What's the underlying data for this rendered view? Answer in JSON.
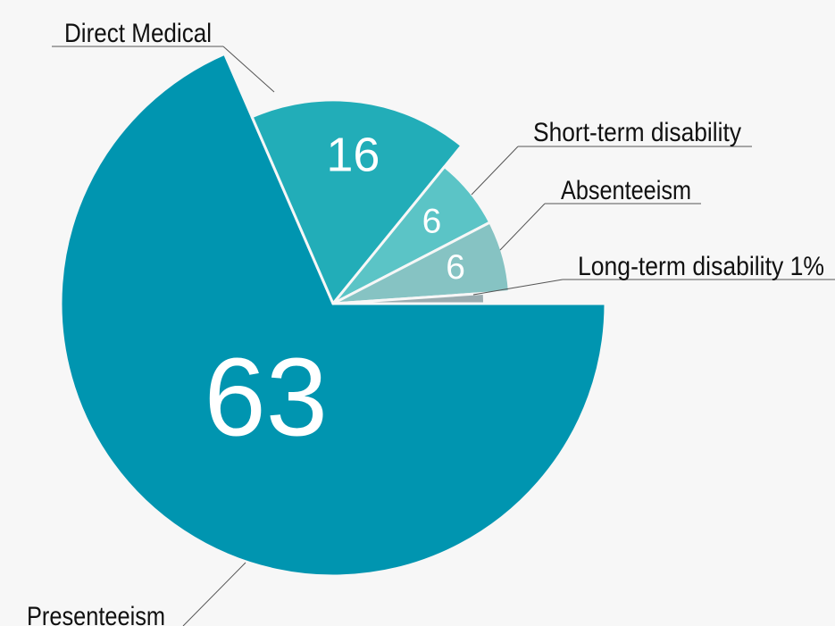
{
  "chart_data": {
    "type": "pie",
    "categories": [
      "Presenteeism",
      "Direct Medical",
      "Short-term disability",
      "Absenteeism",
      "Long-term disability 1%"
    ],
    "values": [
      63,
      16,
      6,
      6,
      1
    ],
    "value_labels": [
      "63",
      "16",
      "6",
      "6",
      null
    ],
    "colors": [
      "#0095b0",
      "#22adb8",
      "#5bc4c6",
      "#86c3c3",
      "#9aacb0"
    ]
  }
}
